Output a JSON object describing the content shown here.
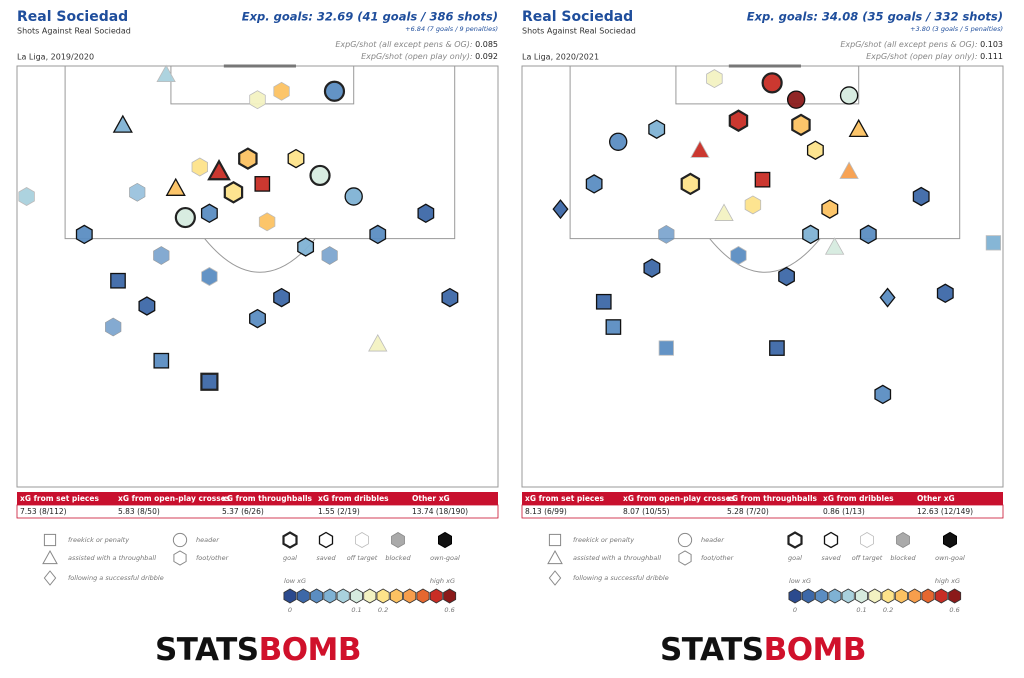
{
  "panels": [
    {
      "title": "Real Sociedad",
      "subtitle": "Shots Against Real Sociedad",
      "competition": "La Liga, 2019/2020",
      "exp_goals": "Exp. goals: 32.69 (41 goals / 386 shots)",
      "penalties": "+6.84 (7 goals / 9 penalties)",
      "xg_shot_all": {
        "label": "ExpG/shot (all except pens & OG):",
        "value": "0.085"
      },
      "xg_shot_open": {
        "label": "ExpG/shot (open play only):",
        "value": "0.092"
      },
      "table": {
        "headers": [
          "xG from set pieces",
          "xG from open-play crosses",
          "xG from throughballs",
          "xG from dribbles",
          "Other xG"
        ],
        "values": [
          "7.53 (8/112)",
          "5.83 (8/50)",
          "5.37 (6/26)",
          "1.55 (2/19)",
          "13.74 (18/190)"
        ]
      },
      "shots": [
        {
          "x": 50,
          "y": 8,
          "xg": 0.15,
          "shape": "foot",
          "outcome": "off target"
        },
        {
          "x": 31,
          "y": 2,
          "xg": 0.08,
          "shape": "throughball",
          "outcome": "off target"
        },
        {
          "x": 55,
          "y": 6,
          "xg": 0.25,
          "shape": "foot",
          "outcome": "off target"
        },
        {
          "x": 51,
          "y": 28,
          "xg": 0.5,
          "shape": "setpiece",
          "outcome": "saved"
        },
        {
          "x": 42,
          "y": 25,
          "xg": 0.55,
          "shape": "throughball",
          "outcome": "goal"
        },
        {
          "x": 40,
          "y": 35,
          "xg": 0.04,
          "shape": "foot",
          "outcome": "saved"
        },
        {
          "x": 63,
          "y": 26,
          "xg": 0.12,
          "shape": "header",
          "outcome": "goal"
        },
        {
          "x": 48,
          "y": 22,
          "xg": 0.3,
          "shape": "foot",
          "outcome": "goal"
        },
        {
          "x": 38,
          "y": 24,
          "xg": 0.2,
          "shape": "foot",
          "outcome": "off target"
        },
        {
          "x": 58,
          "y": 22,
          "xg": 0.22,
          "shape": "foot",
          "outcome": "saved"
        },
        {
          "x": 70,
          "y": 31,
          "xg": 0.06,
          "shape": "header",
          "outcome": "saved"
        },
        {
          "x": 25,
          "y": 30,
          "xg": 0.05,
          "shape": "foot",
          "outcome": "blocked"
        },
        {
          "x": 22,
          "y": 14,
          "xg": 0.05,
          "shape": "throughball",
          "outcome": "saved"
        },
        {
          "x": 14,
          "y": 40,
          "xg": 0.03,
          "shape": "foot",
          "outcome": "saved"
        },
        {
          "x": 30,
          "y": 45,
          "xg": 0.03,
          "shape": "foot",
          "outcome": "blocked"
        },
        {
          "x": 40,
          "y": 50,
          "xg": 0.03,
          "shape": "foot",
          "outcome": "off target"
        },
        {
          "x": 55,
          "y": 55,
          "xg": 0.02,
          "shape": "foot",
          "outcome": "saved"
        },
        {
          "x": 65,
          "y": 45,
          "xg": 0.04,
          "shape": "foot",
          "outcome": "blocked"
        },
        {
          "x": 75,
          "y": 40,
          "xg": 0.03,
          "shape": "foot",
          "outcome": "saved"
        },
        {
          "x": 85,
          "y": 35,
          "xg": 0.02,
          "shape": "foot",
          "outcome": "saved"
        },
        {
          "x": 21,
          "y": 51,
          "xg": 0.02,
          "shape": "setpiece",
          "outcome": "saved"
        },
        {
          "x": 40,
          "y": 75,
          "xg": 0.02,
          "shape": "setpiece",
          "outcome": "goal"
        },
        {
          "x": 30,
          "y": 70,
          "xg": 0.03,
          "shape": "setpiece",
          "outcome": "saved"
        },
        {
          "x": 27,
          "y": 57,
          "xg": 0.02,
          "shape": "foot",
          "outcome": "saved"
        },
        {
          "x": 75,
          "y": 66,
          "xg": 0.15,
          "shape": "throughball",
          "outcome": "off target"
        },
        {
          "x": 90,
          "y": 55,
          "xg": 0.02,
          "shape": "foot",
          "outcome": "saved"
        },
        {
          "x": 2,
          "y": 31,
          "xg": 0.08,
          "shape": "foot",
          "outcome": "off target"
        },
        {
          "x": 66,
          "y": 6,
          "xg": 0.04,
          "shape": "header",
          "outcome": "goal"
        },
        {
          "x": 60,
          "y": 43,
          "xg": 0.05,
          "shape": "foot",
          "outcome": "saved"
        },
        {
          "x": 35,
          "y": 36,
          "xg": 0.1,
          "shape": "header",
          "outcome": "goal"
        },
        {
          "x": 45,
          "y": 30,
          "xg": 0.18,
          "shape": "foot",
          "outcome": "goal"
        },
        {
          "x": 52,
          "y": 37,
          "xg": 0.25,
          "shape": "foot",
          "outcome": "off target"
        },
        {
          "x": 33,
          "y": 29,
          "xg": 0.3,
          "shape": "throughball",
          "outcome": "saved"
        },
        {
          "x": 20,
          "y": 62,
          "xg": 0.03,
          "shape": "foot",
          "outcome": "blocked"
        },
        {
          "x": 50,
          "y": 60,
          "xg": 0.03,
          "shape": "foot",
          "outcome": "saved"
        }
      ]
    },
    {
      "title": "Real Sociedad",
      "subtitle": "Shots Against Real Sociedad",
      "competition": "La Liga, 2020/2021",
      "exp_goals": "Exp. goals: 34.08 (35 goals / 332 shots)",
      "penalties": "+3.80 (3 goals / 5 penalties)",
      "xg_shot_all": {
        "label": "ExpG/shot (all except pens & OG):",
        "value": "0.103"
      },
      "xg_shot_open": {
        "label": "ExpG/shot (open play only):",
        "value": "0.111"
      },
      "table": {
        "headers": [
          "xG from set pieces",
          "xG from open-play crosses",
          "xG from throughballs",
          "xG from dribbles",
          "Other xG"
        ],
        "values": [
          "8.13 (6/99)",
          "8.07 (10/55)",
          "5.28 (7/20)",
          "0.86 (1/13)",
          "12.63 (12/149)"
        ]
      },
      "shots": [
        {
          "x": 52,
          "y": 4,
          "xg": 0.5,
          "shape": "header",
          "outcome": "goal"
        },
        {
          "x": 40,
          "y": 3,
          "xg": 0.15,
          "shape": "foot",
          "outcome": "off target"
        },
        {
          "x": 57,
          "y": 8,
          "xg": 0.6,
          "shape": "header",
          "outcome": "saved"
        },
        {
          "x": 50,
          "y": 27,
          "xg": 0.55,
          "shape": "setpiece",
          "outcome": "saved"
        },
        {
          "x": 37,
          "y": 20,
          "xg": 0.5,
          "shape": "throughball",
          "outcome": "off target"
        },
        {
          "x": 45,
          "y": 13,
          "xg": 0.55,
          "shape": "foot",
          "outcome": "goal"
        },
        {
          "x": 68,
          "y": 7,
          "xg": 0.12,
          "shape": "header",
          "outcome": "saved"
        },
        {
          "x": 58,
          "y": 14,
          "xg": 0.3,
          "shape": "foot",
          "outcome": "goal"
        },
        {
          "x": 42,
          "y": 35,
          "xg": 0.15,
          "shape": "throughball",
          "outcome": "off target"
        },
        {
          "x": 61,
          "y": 20,
          "xg": 0.22,
          "shape": "foot",
          "outcome": "saved"
        },
        {
          "x": 68,
          "y": 25,
          "xg": 0.35,
          "shape": "throughball",
          "outcome": "off target"
        },
        {
          "x": 28,
          "y": 15,
          "xg": 0.05,
          "shape": "foot",
          "outcome": "saved"
        },
        {
          "x": 20,
          "y": 18,
          "xg": 0.04,
          "shape": "header",
          "outcome": "saved"
        },
        {
          "x": 15,
          "y": 28,
          "xg": 0.03,
          "shape": "foot",
          "outcome": "saved"
        },
        {
          "x": 30,
          "y": 40,
          "xg": 0.03,
          "shape": "foot",
          "outcome": "blocked"
        },
        {
          "x": 45,
          "y": 45,
          "xg": 0.03,
          "shape": "foot",
          "outcome": "off target"
        },
        {
          "x": 55,
          "y": 50,
          "xg": 0.02,
          "shape": "foot",
          "outcome": "saved"
        },
        {
          "x": 65,
          "y": 43,
          "xg": 0.1,
          "shape": "throughball",
          "outcome": "off target"
        },
        {
          "x": 72,
          "y": 40,
          "xg": 0.03,
          "shape": "foot",
          "outcome": "saved"
        },
        {
          "x": 83,
          "y": 31,
          "xg": 0.02,
          "shape": "foot",
          "outcome": "saved"
        },
        {
          "x": 17,
          "y": 56,
          "xg": 0.02,
          "shape": "setpiece",
          "outcome": "saved"
        },
        {
          "x": 53,
          "y": 67,
          "xg": 0.02,
          "shape": "setpiece",
          "outcome": "saved"
        },
        {
          "x": 30,
          "y": 67,
          "xg": 0.03,
          "shape": "setpiece",
          "outcome": "off target"
        },
        {
          "x": 27,
          "y": 48,
          "xg": 0.02,
          "shape": "foot",
          "outcome": "saved"
        },
        {
          "x": 76,
          "y": 55,
          "xg": 0.03,
          "shape": "dribble",
          "outcome": "saved"
        },
        {
          "x": 88,
          "y": 54,
          "xg": 0.02,
          "shape": "foot",
          "outcome": "saved"
        },
        {
          "x": 98,
          "y": 42,
          "xg": 0.05,
          "shape": "setpiece",
          "outcome": "off target"
        },
        {
          "x": 8,
          "y": 34,
          "xg": 0.02,
          "shape": "dribble",
          "outcome": "saved"
        },
        {
          "x": 60,
          "y": 40,
          "xg": 0.05,
          "shape": "foot",
          "outcome": "saved"
        },
        {
          "x": 35,
          "y": 28,
          "xg": 0.2,
          "shape": "foot",
          "outcome": "goal"
        },
        {
          "x": 48,
          "y": 33,
          "xg": 0.18,
          "shape": "foot",
          "outcome": "off target"
        },
        {
          "x": 64,
          "y": 34,
          "xg": 0.25,
          "shape": "foot",
          "outcome": "saved"
        },
        {
          "x": 70,
          "y": 15,
          "xg": 0.3,
          "shape": "throughball",
          "outcome": "saved"
        },
        {
          "x": 19,
          "y": 62,
          "xg": 0.03,
          "shape": "setpiece",
          "outcome": "saved"
        },
        {
          "x": 75,
          "y": 78,
          "xg": 0.03,
          "shape": "foot",
          "outcome": "saved"
        }
      ]
    }
  ],
  "legend": {
    "shapes": {
      "setpiece": "freekick or penalty",
      "throughball": "assisted with a throughball",
      "dribble": "following a successful dribble",
      "header": "header",
      "foot": "foot/other"
    },
    "outcomes": [
      "goal",
      "saved",
      "off target",
      "blocked",
      "own-goal"
    ],
    "low_label": "low xG",
    "high_label": "high xG",
    "colors": [
      "#2b4a8e",
      "#3d68a8",
      "#5b8dc2",
      "#7fb2d4",
      "#a9d1dd",
      "#d6ebdf",
      "#f3f2c2",
      "#fde38a",
      "#fcc262",
      "#f79e4c",
      "#e5672f",
      "#c82d25",
      "#8b1a1a"
    ],
    "ticks": [
      0,
      0.1,
      0.2,
      0.6
    ]
  },
  "logo": [
    "STATS",
    "BOMB"
  ]
}
